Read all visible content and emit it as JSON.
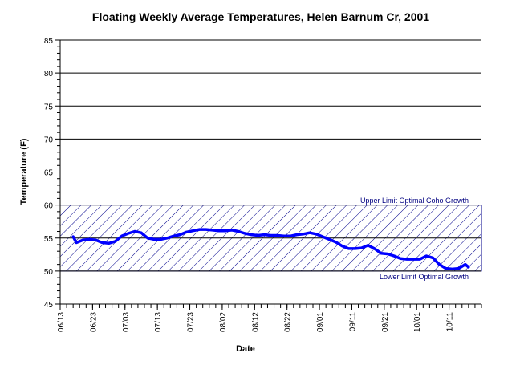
{
  "chart_data": {
    "type": "line",
    "title": "Floating Weekly Average Temperatures, Helen Barnum Cr, 2001",
    "xlabel": "Date",
    "ylabel": "Temperature (F)",
    "ylim": [
      45,
      85
    ],
    "yticks": [
      45,
      50,
      55,
      60,
      65,
      70,
      75,
      80,
      85
    ],
    "xlim": [
      "2001-06-13",
      "2001-10-21"
    ],
    "xtick_labels": [
      "06/13",
      "06/23",
      "07/03",
      "07/13",
      "07/23",
      "08/02",
      "08/12",
      "08/22",
      "09/01",
      "09/11",
      "09/21",
      "10/01",
      "10/11"
    ],
    "grid": "horizontal",
    "colors": {
      "line": "#0000ff",
      "band": "#00008b",
      "band_label": "#000080"
    },
    "bands": [
      {
        "from": 50,
        "to": 60,
        "upper_label": "Upper Limit Optimal Coho Growth",
        "lower_label": "Lower Limit Optimal Growth"
      }
    ],
    "series": [
      {
        "x": [
          "2001-06-17",
          "2001-06-18",
          "2001-06-20",
          "2001-06-22",
          "2001-06-24",
          "2001-06-26",
          "2001-06-28",
          "2001-06-30",
          "2001-07-02",
          "2001-07-04",
          "2001-07-06",
          "2001-07-08",
          "2001-07-10",
          "2001-07-12",
          "2001-07-14",
          "2001-07-16",
          "2001-07-18",
          "2001-07-20",
          "2001-07-22",
          "2001-07-24",
          "2001-07-26",
          "2001-07-28",
          "2001-07-30",
          "2001-08-01",
          "2001-08-03",
          "2001-08-05",
          "2001-08-07",
          "2001-08-09",
          "2001-08-11",
          "2001-08-13",
          "2001-08-15",
          "2001-08-17",
          "2001-08-19",
          "2001-08-21",
          "2001-08-23",
          "2001-08-25",
          "2001-08-27",
          "2001-08-29",
          "2001-08-31",
          "2001-09-02",
          "2001-09-04",
          "2001-09-06",
          "2001-09-08",
          "2001-09-10",
          "2001-09-12",
          "2001-09-14",
          "2001-09-16",
          "2001-09-18",
          "2001-09-20",
          "2001-09-22",
          "2001-09-24",
          "2001-09-26",
          "2001-09-28",
          "2001-09-30",
          "2001-10-02",
          "2001-10-04",
          "2001-10-06",
          "2001-10-08",
          "2001-10-10",
          "2001-10-12",
          "2001-10-14",
          "2001-10-16",
          "2001-10-17"
        ],
        "values": [
          55.2,
          54.3,
          54.7,
          54.8,
          54.7,
          54.3,
          54.2,
          54.5,
          55.3,
          55.7,
          56.0,
          55.8,
          55.0,
          54.8,
          54.8,
          55.0,
          55.3,
          55.5,
          55.9,
          56.1,
          56.3,
          56.3,
          56.2,
          56.1,
          56.1,
          56.2,
          56.0,
          55.7,
          55.5,
          55.4,
          55.5,
          55.4,
          55.4,
          55.3,
          55.3,
          55.5,
          55.6,
          55.8,
          55.6,
          55.2,
          54.8,
          54.4,
          53.8,
          53.4,
          53.4,
          53.5,
          53.9,
          53.4,
          52.7,
          52.6,
          52.3,
          51.9,
          51.8,
          51.8,
          51.8,
          52.3,
          52.0,
          51.0,
          50.4,
          50.3,
          50.4,
          51.0,
          50.6
        ]
      }
    ]
  }
}
